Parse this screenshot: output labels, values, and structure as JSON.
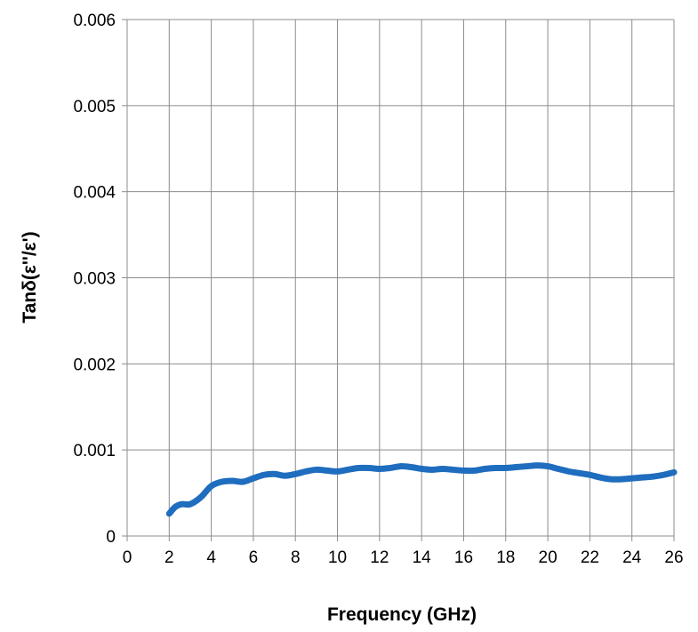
{
  "chart_data": {
    "type": "line",
    "title": "",
    "xlabel": "Frequency (GHz)",
    "ylabel": "Tanδ(ε''/ε')",
    "xlim": [
      0,
      26
    ],
    "ylim": [
      0,
      0.006
    ],
    "grid": true,
    "xticks": [
      "0",
      "2",
      "4",
      "6",
      "8",
      "10",
      "12",
      "14",
      "16",
      "18",
      "20",
      "22",
      "24",
      "26"
    ],
    "yticks": [
      "0",
      "0.001",
      "0.002",
      "0.003",
      "0.004",
      "0.005",
      "0.006"
    ],
    "series": [
      {
        "color": "#1F6DBE",
        "x": [
          2,
          2.3,
          2.6,
          3,
          3.5,
          4,
          4.5,
          5,
          5.5,
          6,
          6.5,
          7,
          7.5,
          8,
          8.5,
          9,
          9.5,
          10,
          10.5,
          11,
          11.5,
          12,
          12.5,
          13,
          13.5,
          14,
          14.5,
          15,
          15.5,
          16,
          16.5,
          17,
          17.5,
          18,
          18.5,
          19,
          19.5,
          20,
          20.5,
          21,
          21.5,
          22,
          22.5,
          23,
          23.5,
          24,
          24.5,
          25,
          25.5,
          26
        ],
        "y": [
          0.00026,
          0.00034,
          0.00037,
          0.00037,
          0.00045,
          0.00058,
          0.00063,
          0.00064,
          0.00063,
          0.00067,
          0.00071,
          0.00072,
          0.0007,
          0.00072,
          0.00075,
          0.00077,
          0.00076,
          0.00075,
          0.00077,
          0.00079,
          0.00079,
          0.00078,
          0.00079,
          0.00081,
          0.0008,
          0.00078,
          0.00077,
          0.00078,
          0.00077,
          0.00076,
          0.00076,
          0.00078,
          0.00079,
          0.00079,
          0.0008,
          0.00081,
          0.00082,
          0.00081,
          0.00078,
          0.00075,
          0.00073,
          0.00071,
          0.00068,
          0.00066,
          0.00066,
          0.00067,
          0.00068,
          0.00069,
          0.00071,
          0.00074
        ]
      }
    ]
  }
}
